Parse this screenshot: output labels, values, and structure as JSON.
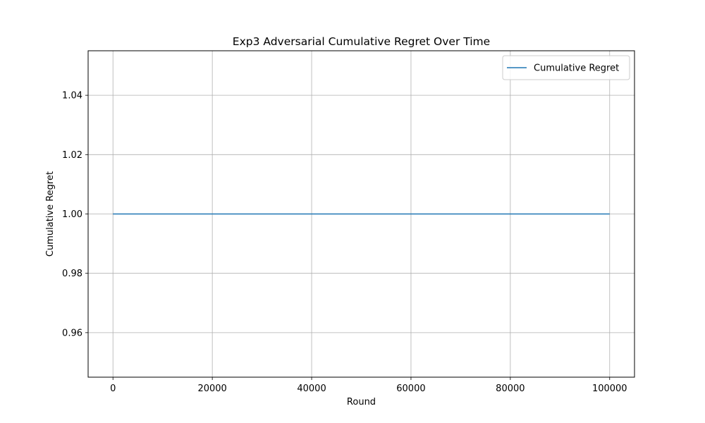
{
  "chart_data": {
    "type": "line",
    "title": "Exp3 Adversarial Cumulative Regret Over Time",
    "xlabel": "Round",
    "ylabel": "Cumulative Regret",
    "xlim": [
      -5000,
      105000
    ],
    "ylim": [
      0.945,
      1.055
    ],
    "x_ticks": [
      0,
      20000,
      40000,
      60000,
      80000,
      100000
    ],
    "x_tick_labels": [
      "0",
      "20000",
      "40000",
      "60000",
      "80000",
      "100000"
    ],
    "y_ticks": [
      0.96,
      0.98,
      1.0,
      1.02,
      1.04
    ],
    "y_tick_labels": [
      "0.96",
      "0.98",
      "1.00",
      "1.02",
      "1.04"
    ],
    "grid": true,
    "legend_position": "upper right",
    "series": [
      {
        "name": "Cumulative Regret",
        "color": "#1f77b4",
        "x": [
          0,
          100000
        ],
        "y": [
          1.0,
          1.0
        ]
      }
    ]
  }
}
